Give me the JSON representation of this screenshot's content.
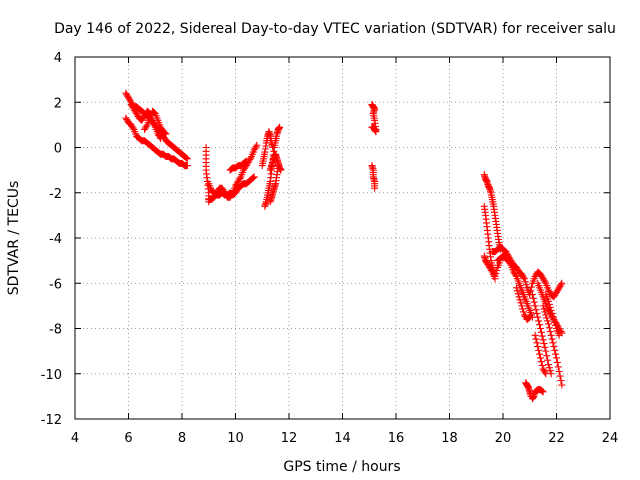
{
  "chart_data": {
    "type": "scatter",
    "title": "Day 146 of 2022, Sidereal Day-to-day VTEC variation (SDTVAR) for receiver salu",
    "xlabel": "GPS time / hours",
    "ylabel": "SDTVAR / TECUs",
    "xlim": [
      4,
      24
    ],
    "ylim": [
      -12,
      4
    ],
    "xticks": [
      4,
      6,
      8,
      10,
      12,
      14,
      16,
      18,
      20,
      22,
      24
    ],
    "yticks": [
      4,
      2,
      0,
      -2,
      -4,
      -6,
      -8,
      -10,
      -12
    ],
    "grid": true,
    "marker": "+",
    "series": [
      {
        "name": "SDTVAR",
        "color": "#ff0000",
        "segments": [
          {
            "x": [
              5.9,
              6.0,
              6.1,
              6.2,
              6.3,
              6.4,
              6.5,
              6.6,
              6.7,
              6.8,
              6.9,
              7.0,
              7.1,
              7.2,
              7.3,
              7.4,
              7.5,
              7.6,
              7.7,
              7.8,
              7.9,
              8.0,
              8.1,
              8.2
            ],
            "y": [
              2.4,
              2.2,
              2.0,
              1.8,
              1.8,
              1.7,
              1.6,
              1.5,
              1.4,
              1.3,
              1.1,
              1.0,
              0.8,
              0.6,
              0.5,
              0.3,
              0.2,
              0.1,
              0.0,
              -0.1,
              -0.2,
              -0.3,
              -0.4,
              -0.5
            ]
          },
          {
            "x": [
              5.9,
              6.0,
              6.1,
              6.2,
              6.3,
              6.4,
              6.5,
              6.6,
              6.7,
              6.8,
              6.9,
              7.0,
              7.1,
              7.2,
              7.3,
              7.4,
              7.5,
              7.6,
              7.7,
              7.8,
              7.9,
              8.0,
              8.1,
              8.2
            ],
            "y": [
              1.3,
              1.1,
              1.0,
              0.8,
              0.5,
              0.4,
              0.3,
              0.3,
              0.2,
              0.1,
              0.0,
              -0.1,
              -0.2,
              -0.3,
              -0.3,
              -0.4,
              -0.4,
              -0.5,
              -0.5,
              -0.6,
              -0.7,
              -0.7,
              -0.8,
              -0.8
            ]
          },
          {
            "x": [
              6.1,
              6.2,
              6.3,
              6.4,
              6.5,
              6.6,
              6.7,
              6.8,
              6.9,
              7.0,
              7.1,
              7.2
            ],
            "y": [
              1.9,
              1.7,
              1.5,
              1.3,
              1.2,
              1.4,
              1.6,
              1.5,
              1.2,
              0.9,
              0.6,
              0.4
            ]
          },
          {
            "x": [
              6.6,
              6.7,
              6.8,
              6.9,
              7.0,
              7.1,
              7.2,
              7.3,
              7.4
            ],
            "y": [
              0.8,
              1.0,
              1.3,
              1.6,
              1.5,
              1.2,
              0.9,
              0.7,
              0.6
            ]
          },
          {
            "x": [
              8.9,
              8.9,
              8.9,
              8.95,
              9.0,
              9.0
            ],
            "y": [
              0.0,
              -0.5,
              -1.0,
              -1.5,
              -2.0,
              -2.4
            ]
          },
          {
            "x": [
              9.0,
              9.1,
              9.2,
              9.3,
              9.4,
              9.5,
              9.6,
              9.7,
              9.8,
              9.9,
              10.0,
              10.1,
              10.2,
              10.3,
              10.4,
              10.5,
              10.6,
              10.7
            ],
            "y": [
              -1.6,
              -1.9,
              -2.0,
              -2.1,
              -2.1,
              -2.0,
              -2.1,
              -2.1,
              -2.0,
              -2.1,
              -2.0,
              -1.8,
              -1.7,
              -1.6,
              -1.6,
              -1.5,
              -1.4,
              -1.3
            ]
          },
          {
            "x": [
              9.0,
              9.1,
              9.2,
              9.3,
              9.4,
              9.5,
              9.6,
              9.7,
              9.8,
              9.9,
              10.0,
              10.1,
              10.2,
              10.3,
              10.4,
              10.5,
              10.6,
              10.7,
              10.8
            ],
            "y": [
              -2.3,
              -2.3,
              -2.2,
              -2.0,
              -1.8,
              -1.8,
              -2.0,
              -2.2,
              -2.2,
              -2.0,
              -1.7,
              -1.5,
              -1.3,
              -1.0,
              -0.8,
              -0.6,
              -0.4,
              -0.1,
              0.1
            ]
          },
          {
            "x": [
              9.8,
              9.9,
              10.0,
              10.1,
              10.2,
              10.3,
              10.4
            ],
            "y": [
              -1.0,
              -0.9,
              -0.9,
              -0.8,
              -0.8,
              -0.7,
              -0.6
            ]
          },
          {
            "x": [
              11.1,
              11.15,
              11.2,
              11.25,
              11.3,
              11.35,
              11.4,
              11.45,
              11.5,
              11.55,
              11.6,
              11.65
            ],
            "y": [
              -2.6,
              -2.4,
              -2.1,
              -1.8,
              -1.5,
              -1.0,
              -0.5,
              0.0,
              0.3,
              0.6,
              0.8,
              0.9
            ]
          },
          {
            "x": [
              11.0,
              11.05,
              11.1,
              11.15,
              11.2,
              11.25,
              11.3,
              11.35,
              11.4
            ],
            "y": [
              -0.8,
              -0.5,
              -0.2,
              0.2,
              0.5,
              0.7,
              0.5,
              0.2,
              0.0
            ]
          },
          {
            "x": [
              11.3,
              11.35,
              11.4,
              11.45,
              11.5,
              11.55,
              11.6
            ],
            "y": [
              -2.4,
              -2.2,
              -2.0,
              -1.8,
              -1.6,
              -1.2,
              -0.8
            ]
          },
          {
            "x": [
              11.3,
              11.35,
              11.4,
              11.45,
              11.5,
              11.55,
              11.6,
              11.65,
              11.7
            ],
            "y": [
              -1.0,
              -0.8,
              -0.6,
              -0.4,
              -0.3,
              -0.5,
              -0.7,
              -0.9,
              -1.0
            ]
          },
          {
            "x": [
              15.1,
              15.15,
              15.2,
              15.15,
              15.2,
              15.25
            ],
            "y": [
              1.9,
              1.8,
              1.7,
              1.5,
              1.2,
              0.8
            ]
          },
          {
            "x": [
              15.1,
              15.15,
              15.2,
              15.25
            ],
            "y": [
              0.9,
              0.9,
              0.8,
              0.7
            ]
          },
          {
            "x": [
              15.1,
              15.15,
              15.15,
              15.2,
              15.2
            ],
            "y": [
              -0.8,
              -1.0,
              -1.3,
              -1.5,
              -1.8
            ]
          },
          {
            "x": [
              19.3,
              19.35,
              19.4,
              19.45,
              19.5,
              19.55,
              19.6,
              19.65,
              19.7,
              19.75,
              19.8,
              19.85,
              19.9
            ],
            "y": [
              -1.2,
              -1.4,
              -1.5,
              -1.7,
              -1.8,
              -2.0,
              -2.3,
              -2.6,
              -3.0,
              -3.4,
              -3.8,
              -4.2,
              -4.5
            ]
          },
          {
            "x": [
              19.3,
              19.35,
              19.4,
              19.45,
              19.5,
              19.55,
              19.6,
              19.65,
              19.7,
              19.8,
              19.9
            ],
            "y": [
              -2.6,
              -3.0,
              -3.5,
              -4.0,
              -4.5,
              -5.0,
              -5.3,
              -5.5,
              -5.7,
              -5.3,
              -5.0
            ]
          },
          {
            "x": [
              19.3,
              19.35,
              19.4,
              19.5,
              19.6,
              19.7
            ],
            "y": [
              -4.8,
              -5.0,
              -5.1,
              -5.3,
              -5.5,
              -5.8
            ]
          },
          {
            "x": [
              19.6,
              19.7,
              19.8,
              19.9,
              20.0,
              20.1,
              20.2,
              20.3,
              20.4,
              20.5,
              20.6,
              20.7,
              20.8,
              20.9,
              21.0
            ],
            "y": [
              -4.6,
              -4.6,
              -4.5,
              -4.4,
              -4.5,
              -4.6,
              -4.8,
              -5.0,
              -5.2,
              -5.3,
              -5.5,
              -5.6,
              -5.8,
              -6.2,
              -6.5
            ]
          },
          {
            "x": [
              19.8,
              19.9,
              20.0,
              20.1,
              20.2,
              20.3,
              20.4,
              20.5,
              20.6,
              20.7,
              20.8,
              20.9,
              21.0,
              21.1
            ],
            "y": [
              -5.0,
              -4.9,
              -4.8,
              -4.9,
              -5.0,
              -5.2,
              -5.5,
              -5.7,
              -6.0,
              -6.3,
              -6.6,
              -6.9,
              -7.2,
              -7.5
            ]
          },
          {
            "x": [
              20.5,
              20.6,
              20.7,
              20.8,
              20.9,
              21.0
            ],
            "y": [
              -6.2,
              -6.6,
              -7.0,
              -7.4,
              -7.6,
              -7.5
            ]
          },
          {
            "x": [
              21.0,
              21.1,
              21.2,
              21.3,
              21.4,
              21.5,
              21.6,
              21.7,
              21.8,
              21.9,
              22.0,
              22.1,
              22.2
            ],
            "y": [
              -6.5,
              -6.0,
              -5.7,
              -5.5,
              -5.6,
              -5.8,
              -6.0,
              -6.3,
              -6.5,
              -6.6,
              -6.4,
              -6.2,
              -6.0
            ]
          },
          {
            "x": [
              21.1,
              21.2,
              21.3,
              21.4,
              21.5,
              21.6,
              21.7,
              21.8
            ],
            "y": [
              -6.5,
              -7.0,
              -7.5,
              -8.0,
              -8.5,
              -9.0,
              -9.6,
              -10.0
            ]
          },
          {
            "x": [
              21.3,
              21.4,
              21.5,
              21.6,
              21.7,
              21.8,
              21.9,
              22.0,
              22.1,
              22.2
            ],
            "y": [
              -6.0,
              -6.3,
              -6.6,
              -6.9,
              -7.2,
              -7.4,
              -7.6,
              -7.8,
              -8.0,
              -8.2
            ]
          },
          {
            "x": [
              21.5,
              21.6,
              21.7,
              21.8,
              21.9,
              22.0,
              22.1,
              22.2
            ],
            "y": [
              -7.0,
              -7.4,
              -7.8,
              -8.3,
              -8.8,
              -9.3,
              -9.9,
              -10.5
            ]
          },
          {
            "x": [
              21.6,
              21.7,
              21.8,
              21.9,
              22.0,
              22.1
            ],
            "y": [
              -6.5,
              -6.8,
              -7.2,
              -7.6,
              -8.0,
              -8.3
            ]
          },
          {
            "x": [
              21.2,
              21.3,
              21.4,
              21.5,
              21.6
            ],
            "y": [
              -8.3,
              -8.8,
              -9.3,
              -9.8,
              -10.0
            ]
          },
          {
            "x": [
              20.85,
              20.9,
              20.95,
              21.0,
              21.05
            ],
            "y": [
              -10.4,
              -10.5,
              -10.6,
              -10.8,
              -11.0
            ]
          },
          {
            "x": [
              21.1,
              21.15,
              21.2,
              21.3,
              21.4,
              21.5
            ],
            "y": [
              -11.1,
              -11.0,
              -10.8,
              -10.7,
              -10.7,
              -10.8
            ]
          }
        ]
      }
    ]
  }
}
